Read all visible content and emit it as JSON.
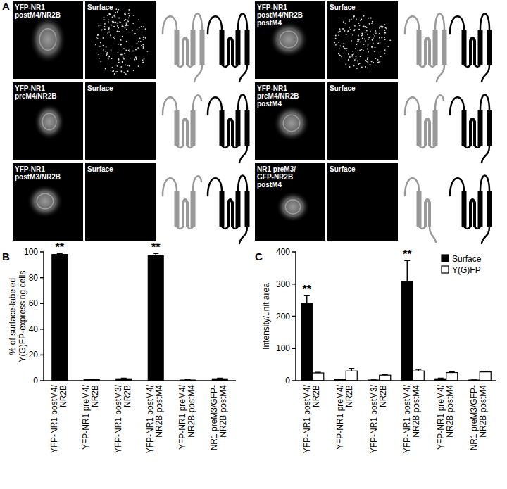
{
  "panel_a": {
    "title": "A",
    "images": [
      {
        "label": "YFP-NR1\npostM4/NR2B",
        "channel": "Surface"
      },
      {
        "label": "YFP-NR1\npreM4/NR2B",
        "channel": "Surface"
      },
      {
        "label": "YFP-NR1\npostM3/NR2B",
        "channel": "Surface"
      },
      {
        "label": "YFP-NR1\npostM4/NR2B\npostM4",
        "channel": "Surface"
      },
      {
        "label": "YFP-NR1\npreM4/NR2B\npostM4",
        "channel": "Surface"
      },
      {
        "label": "NR1 preM3/\nGFP-NR2B\npostM4",
        "channel": "Surface"
      }
    ]
  },
  "chart_data": [
    {
      "type": "bar",
      "title": "B",
      "y_label": "% of surface-labeled\nY(G)FP-expressing cells",
      "categories": [
        "YFP-NR1 postM4/\nNR2B",
        "YFP-NR1 preM4/\nNR2B",
        "YFP-NR1 postM3/\nNR2B",
        "YFP-NR1 postM4/\nNR2B postM4",
        "YFP-NR1 preM4/\nNR2B postM4",
        "NR1 preM3/GFP-\nNR2B postM4"
      ],
      "values": [
        98,
        1,
        1.5,
        97,
        0.5,
        1.5
      ],
      "errors": [
        0.8,
        0.3,
        0.4,
        1.8,
        0.2,
        0.4
      ],
      "significance": [
        "**",
        null,
        null,
        "**",
        null,
        null
      ],
      "color": "#000000",
      "ylim": [
        0,
        100
      ],
      "yticks": [
        0,
        20,
        40,
        60,
        80,
        100
      ],
      "grid": false
    },
    {
      "type": "bar",
      "title": "C",
      "y_label": "Intensity/unit area",
      "categories": [
        "YFP-NR1 postM4/\nNR2B",
        "YFP-NR1 preM4/\nNR2B",
        "YFP-NR1 postM3/\nNR2B",
        "YFP-NR1 postM4/\nNR2B postM4",
        "YFP-NR1 preM4/\nNR2B postM4",
        "NR1 preM3/GFP-\nNR2B postM4"
      ],
      "series": [
        {
          "name": "Surface",
          "color": "#000000",
          "values": [
            240,
            3,
            2,
            308,
            6,
            2
          ],
          "errors": [
            25,
            1,
            0.5,
            65,
            2,
            0.5
          ],
          "significance": [
            "**",
            null,
            null,
            "**",
            null,
            null
          ]
        },
        {
          "name": "Y(G)FP",
          "color": "#ffffff",
          "values": [
            24,
            30,
            17,
            30,
            25,
            27
          ],
          "errors": [
            2,
            8,
            2,
            5,
            3,
            2
          ]
        }
      ],
      "ylim": [
        0,
        400
      ],
      "yticks": [
        0,
        100,
        200,
        300,
        400
      ],
      "grid": false,
      "legend": "top-right"
    }
  ]
}
